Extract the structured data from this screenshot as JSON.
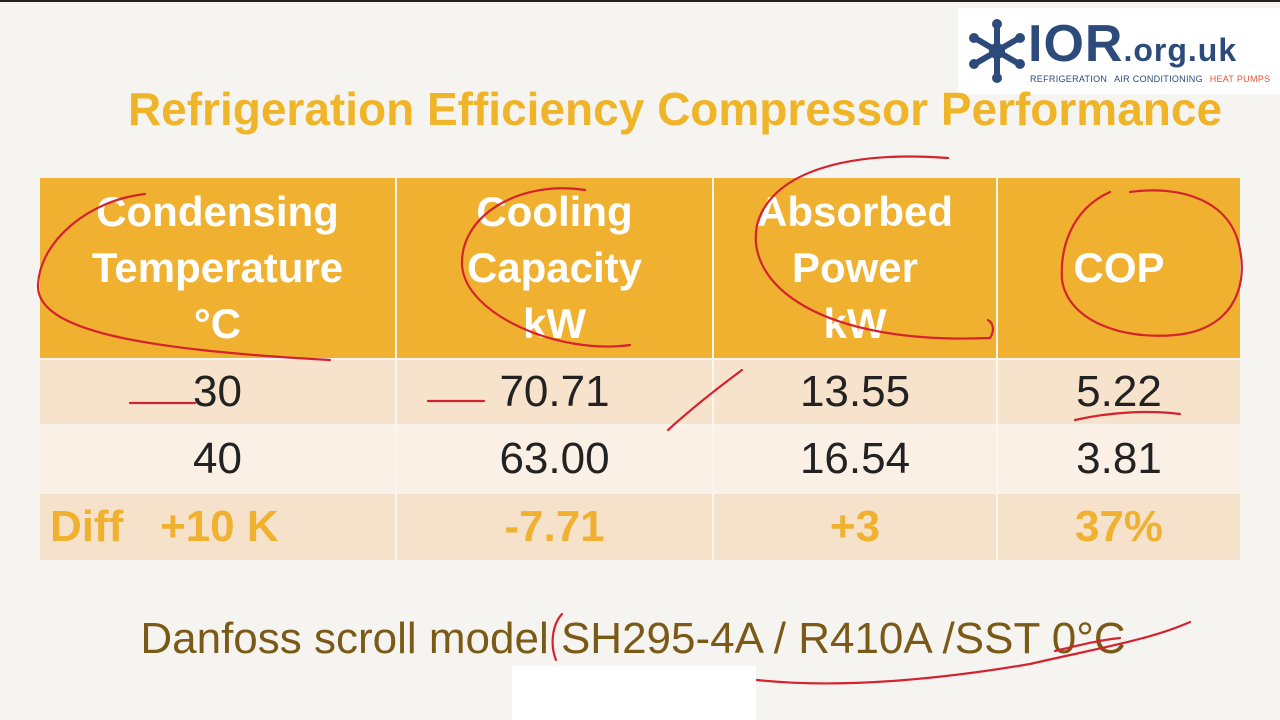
{
  "title": "Refrigeration Efficiency Compressor Performance",
  "logo": {
    "word": "IOR",
    "domain": ".org.uk",
    "tag1": "REFRIGERATION",
    "tag2": "AIR CONDITIONING",
    "tag3": "HEAT PUMPS",
    "icon": "snowflake-icon"
  },
  "table": {
    "headers": [
      [
        "Condensing",
        "Temperature",
        "°C"
      ],
      [
        "Cooling",
        "Capacity",
        "kW"
      ],
      [
        "Absorbed",
        "Power",
        "kW"
      ],
      [
        "COP"
      ]
    ],
    "rows": [
      [
        "30",
        "70.71",
        "13.55",
        "5.22"
      ],
      [
        "40",
        "63.00",
        "16.54",
        "3.81"
      ]
    ],
    "diff": [
      "Diff   +10 K",
      "-7.71",
      "+3",
      "37%"
    ]
  },
  "caption": "Danfoss scroll model SH295-4A / R410A /SST 0°C",
  "colors": {
    "accent": "#efb12f",
    "annotation": "#d4232e",
    "caption": "#7a5a16"
  }
}
